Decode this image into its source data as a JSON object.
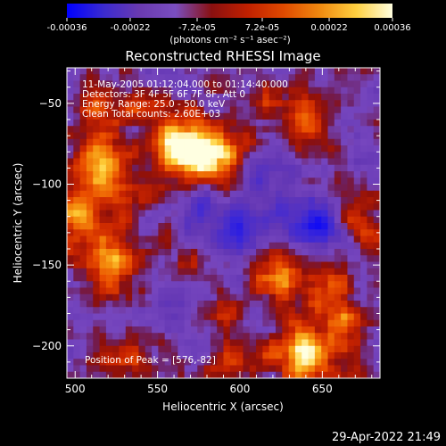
{
  "chart_data": {
    "type": "heatmap",
    "title": "Reconstructed RHESSI Image",
    "xlabel": "Heliocentric X (arcsec)",
    "ylabel": "Heliocentric Y (arcsec)",
    "xlim": [
      495,
      685
    ],
    "ylim": [
      -220,
      -28
    ],
    "x_ticks": [
      500,
      550,
      600,
      650
    ],
    "y_ticks": [
      -50,
      -100,
      -150,
      -200
    ],
    "colorbar": {
      "min": -0.00036,
      "max": 0.00036,
      "tick_values": [
        -0.00036,
        -0.00022,
        -7.2e-05,
        7.2e-05,
        0.00022,
        0.00036
      ],
      "tick_labels": [
        "-0.00036",
        "-0.00022",
        "-7.2e-05",
        "7.2e-05",
        "0.00022",
        "0.00036"
      ],
      "label": "(photons cm⁻² s⁻¹ asec⁻²)",
      "colors": [
        "#0000ff",
        "#3a2ad0",
        "#6a3ab0",
        "#7a4ec0",
        "#8a1010",
        "#c02000",
        "#e04a00",
        "#f08a10",
        "#ffd040",
        "#ffffe0"
      ]
    },
    "blobs": [
      {
        "x": 578,
        "y": -82,
        "w": 15,
        "a": 1.0
      },
      {
        "x": 560,
        "y": -73,
        "w": 11,
        "a": 0.65
      },
      {
        "x": 517,
        "y": -87,
        "w": 11,
        "a": 0.75
      },
      {
        "x": 500,
        "y": -120,
        "w": 16,
        "a": 0.65
      },
      {
        "x": 522,
        "y": -150,
        "w": 13,
        "a": 0.55
      },
      {
        "x": 538,
        "y": -105,
        "w": 9,
        "a": 0.45
      },
      {
        "x": 515,
        "y": -55,
        "w": 10,
        "a": 0.45
      },
      {
        "x": 540,
        "y": -50,
        "w": 8,
        "a": 0.35
      },
      {
        "x": 625,
        "y": -155,
        "w": 12,
        "a": 0.75
      },
      {
        "x": 655,
        "y": -165,
        "w": 9,
        "a": 0.6
      },
      {
        "x": 640,
        "y": -205,
        "w": 13,
        "a": 0.95
      },
      {
        "x": 600,
        "y": -210,
        "w": 10,
        "a": 0.45
      },
      {
        "x": 590,
        "y": -180,
        "w": 9,
        "a": 0.3
      },
      {
        "x": 530,
        "y": -210,
        "w": 12,
        "a": 0.45
      },
      {
        "x": 675,
        "y": -120,
        "w": 11,
        "a": 0.5
      },
      {
        "x": 640,
        "y": -60,
        "w": 12,
        "a": 0.4
      },
      {
        "x": 610,
        "y": -50,
        "w": 9,
        "a": 0.3
      },
      {
        "x": 570,
        "y": -150,
        "w": 7,
        "a": 0.25
      },
      {
        "x": 665,
        "y": -185,
        "w": 8,
        "a": 0.5
      },
      {
        "x": 600,
        "y": -125,
        "w": 14,
        "a": -0.55
      },
      {
        "x": 645,
        "y": -125,
        "w": 11,
        "a": -0.8
      },
      {
        "x": 575,
        "y": -115,
        "w": 8,
        "a": -0.6
      },
      {
        "x": 620,
        "y": -95,
        "w": 10,
        "a": -0.35
      },
      {
        "x": 560,
        "y": -175,
        "w": 10,
        "a": -0.3
      }
    ],
    "noise_level": 0.22,
    "annotations": [
      "11-May-2005 01:12:04.000 to 01:14:40.000",
      "Detectors: 3F 4F 5F 6F 7F 8F, Att 0",
      "Energy Range: 25.0 - 50.0 keV",
      "Clean    Total counts: 2.60E+03"
    ],
    "peak_label": "Position of Peak = [576,-82]",
    "timestamp": "29-Apr-2022 21:49"
  }
}
